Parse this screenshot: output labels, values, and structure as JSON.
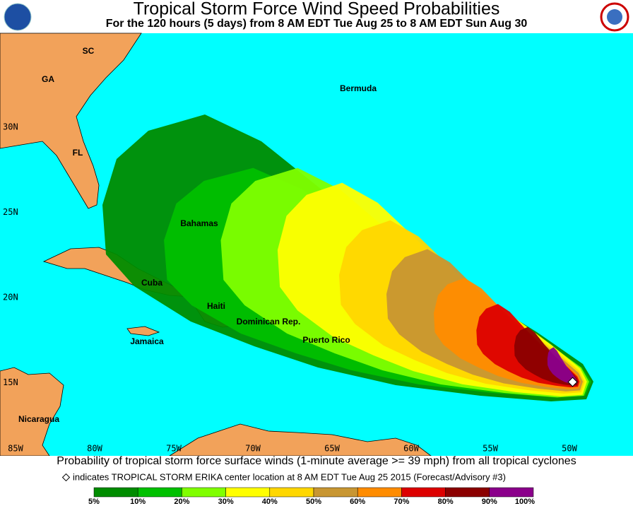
{
  "header": {
    "title": "Tropical Storm Force Wind Speed Probabilities",
    "subtitle": "For the 120 hours (5 days) from 8 AM EDT Tue Aug 25 to 8 AM EDT Sun Aug 30"
  },
  "map": {
    "places": [
      "SC",
      "GA",
      "FL",
      "Bermuda",
      "Bahamas",
      "Cuba",
      "Haiti",
      "Dominican Rep.",
      "Jamaica",
      "Puerto Rico",
      "Nicaragua"
    ],
    "lat_labels": [
      {
        "value": 30,
        "label": "30N"
      },
      {
        "value": 25,
        "label": "25N"
      },
      {
        "value": 20,
        "label": "20N"
      },
      {
        "value": 15,
        "label": "15N"
      }
    ],
    "lon_labels": [
      {
        "value": 85,
        "label": "85W"
      },
      {
        "value": 80,
        "label": "80W"
      },
      {
        "value": 75,
        "label": "75W"
      },
      {
        "value": 70,
        "label": "70W"
      },
      {
        "value": 65,
        "label": "65W"
      },
      {
        "value": 60,
        "label": "60W"
      },
      {
        "value": 55,
        "label": "55W"
      },
      {
        "value": 50,
        "label": "50W"
      }
    ]
  },
  "caption": {
    "line1": "Probability of tropical storm force surface winds (1-minute average >= 39 mph) from all tropical cyclones",
    "line2": "indicates TROPICAL STORM ERIKA center location at 8 AM EDT Tue Aug 25 2015 (Forecast/Advisory #3)"
  },
  "legend": {
    "labels": [
      "5%",
      "10%",
      "20%",
      "30%",
      "40%",
      "50%",
      "60%",
      "70%",
      "80%",
      "90%",
      "100%"
    ],
    "colors": [
      "#008c00",
      "#00c000",
      "#80ff00",
      "#ffff00",
      "#ffd700",
      "#c89632",
      "#ff8c00",
      "#dd0000",
      "#8b0000",
      "#8b008b"
    ]
  }
}
